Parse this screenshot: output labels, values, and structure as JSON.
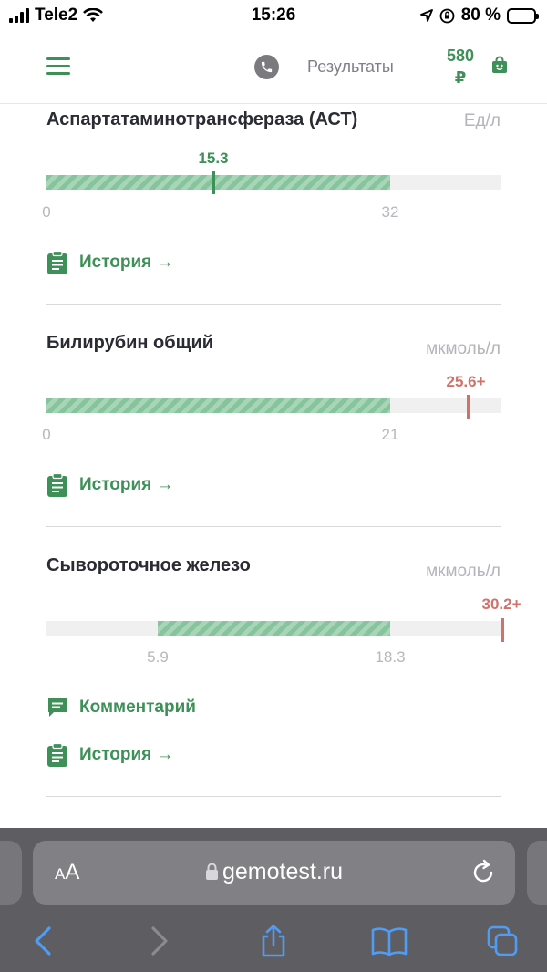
{
  "status": {
    "carrier": "Tele2",
    "time": "15:26",
    "battery": "80 %"
  },
  "header": {
    "results_label": "Результаты",
    "price_amount": "580",
    "price_currency": "₽"
  },
  "results": [
    {
      "title": "Аспартатаминотрансфераза (АСТ)",
      "unit": "Ед/л",
      "ref_min_label": "0",
      "ref_max_label": "32",
      "value_label": "15.3",
      "value": 15.3,
      "ref_min": 0,
      "ref_max": 32,
      "status": "normal",
      "history_label": "История →"
    },
    {
      "title": "Билирубин общий",
      "unit": "мкмоль/л",
      "ref_min_label": "0",
      "ref_max_label": "21",
      "value_label": "25.6+",
      "value": 25.6,
      "ref_min": 0,
      "ref_max": 21,
      "status": "above",
      "history_label": "История →"
    },
    {
      "title": "Сывороточное железо",
      "unit": "мкмоль/л",
      "ref_min_label": "5.9",
      "ref_max_label": "18.3",
      "value_label": "30.2+",
      "value": 30.2,
      "ref_min": 5.9,
      "ref_max": 18.3,
      "status": "above",
      "comment_label": "Комментарий",
      "history_label": "История →"
    }
  ],
  "browser": {
    "text_size_small": "A",
    "text_size_large": "A",
    "domain": "gemotest.ru"
  },
  "colors": {
    "brand_green": "#3e8f58",
    "normal_marker": "#3e8f58",
    "above_marker": "#d0716c"
  },
  "icons": [
    "hamburger-menu-icon",
    "phone-icon",
    "shopping-bag-icon",
    "clipboard-icon",
    "comment-icon",
    "lock-icon",
    "reload-icon",
    "back-icon",
    "forward-icon",
    "share-icon",
    "bookmarks-icon",
    "tabs-icon"
  ]
}
